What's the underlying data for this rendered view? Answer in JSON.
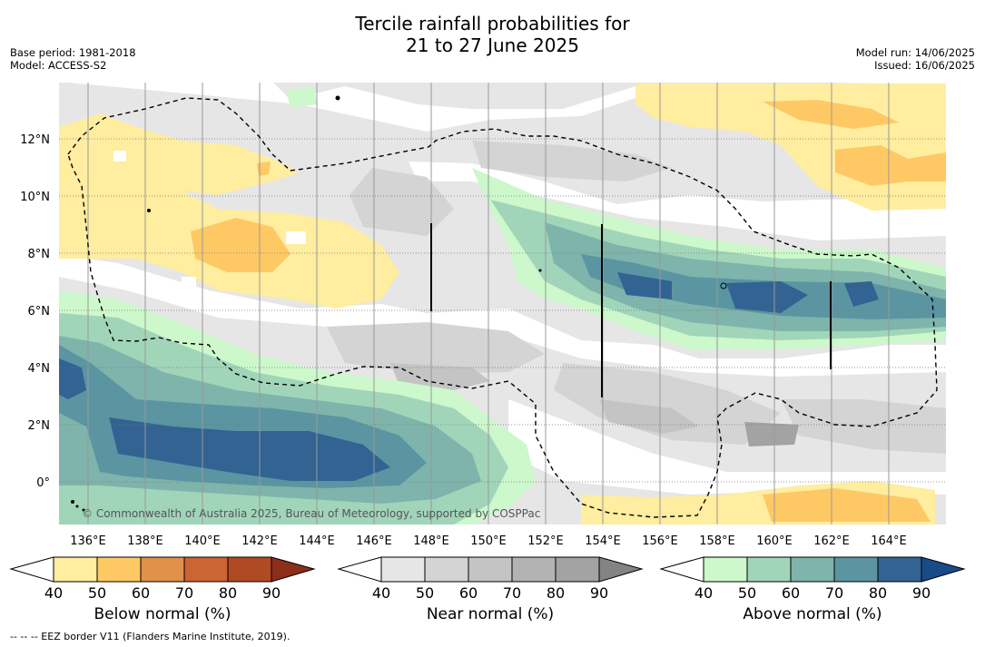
{
  "title": {
    "line1": "Tercile rainfall probabilities for",
    "line2": "21 to 27 June 2025"
  },
  "meta_left": {
    "base_period": "Base period: 1981-2018",
    "model": "Model: ACCESS-S2"
  },
  "meta_right": {
    "model_run": "Model run: 14/06/2025",
    "issued": "Issued: 16/06/2025"
  },
  "map": {
    "lon_labels": [
      "136°E",
      "138°E",
      "140°E",
      "142°E",
      "144°E",
      "146°E",
      "148°E",
      "150°E",
      "152°E",
      "154°E",
      "156°E",
      "158°E",
      "160°E",
      "162°E",
      "164°E"
    ],
    "lat_labels": [
      "12°N",
      "10°N",
      "8°N",
      "6°N",
      "4°N",
      "2°N",
      "0°"
    ],
    "copyright": "© Commonwealth of Australia 2025, Bureau of Meteorology, supported by COSPPac",
    "colors": {
      "land_line": "#000000",
      "eez_line": "#000000",
      "below": [
        "#ffeda0",
        "#fec965",
        "#e0914a",
        "#cc6434",
        "#b04a24",
        "#8c2f1a"
      ],
      "near": [
        "#e6e6e6",
        "#d4d4d4",
        "#c4c4c4",
        "#b3b3b3",
        "#a3a3a3",
        "#838383"
      ],
      "above": [
        "#ccf8cb",
        "#a1d5b9",
        "#7eb4ab",
        "#5b95a2",
        "#326392",
        "#1a4a88"
      ]
    }
  },
  "colorbars": [
    {
      "name": "below",
      "ticks": [
        "40",
        "50",
        "60",
        "70",
        "80",
        "90"
      ],
      "label": "Below normal (%)"
    },
    {
      "name": "near",
      "ticks": [
        "40",
        "50",
        "60",
        "70",
        "80",
        "90"
      ],
      "label": "Near normal (%)"
    },
    {
      "name": "above",
      "ticks": [
        "40",
        "50",
        "60",
        "70",
        "80",
        "90"
      ],
      "label": "Above normal (%)"
    }
  ],
  "footnote": "--  --  -- EEZ border V11 (Flanders Marine Institute, 2019)."
}
